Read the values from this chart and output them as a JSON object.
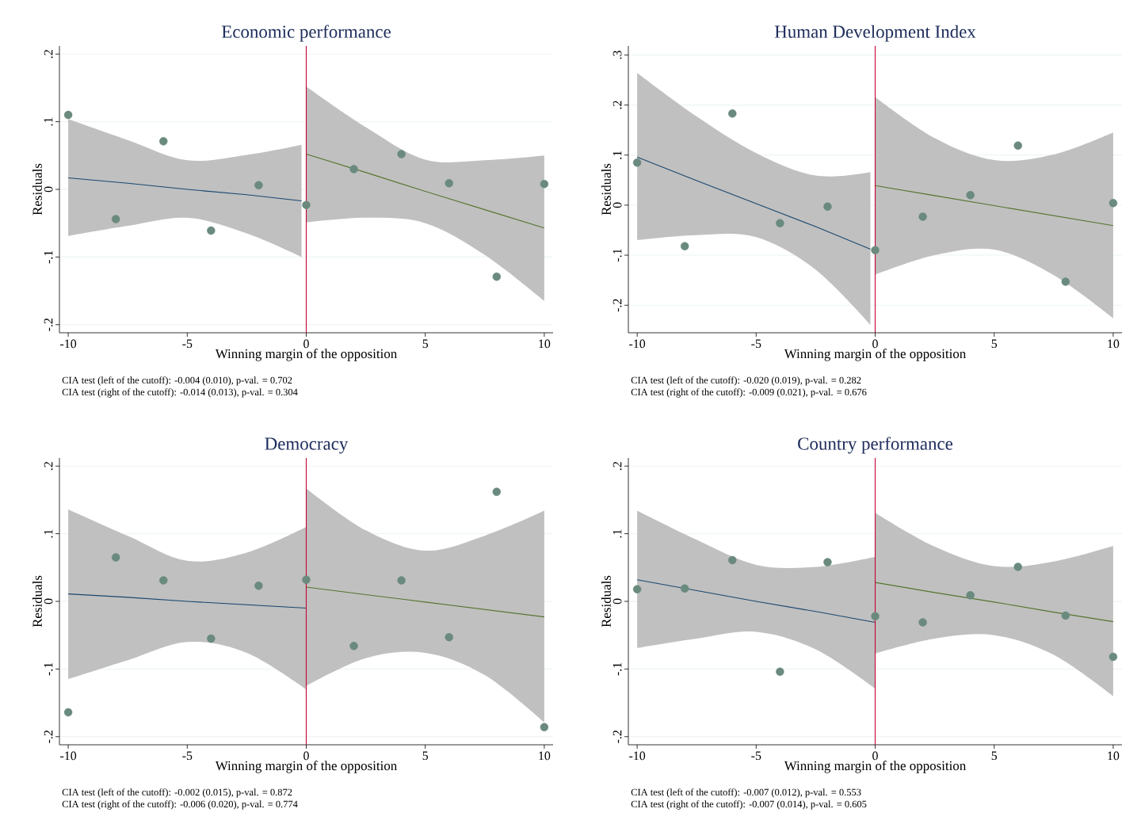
{
  "chart_data": [
    {
      "type": "scatter",
      "title": "Economic performance",
      "xlabel": "Winning margin of the opposition",
      "ylabel": "Residuals",
      "annotations": [
        "CIA test (left of the cutoff):  -0.004 (0.010), p-val. = 0.702",
        "CIA test (right of the cutoff): -0.014 (0.013), p-val. = 0.304"
      ],
      "xlim": [
        -10.37,
        10.37
      ],
      "ylim": [
        -0.212,
        0.212
      ],
      "xticks": [
        -10,
        -5,
        0,
        5,
        10
      ],
      "yticks": [
        {
          "value": -0.2,
          "label": "-.2"
        },
        {
          "value": -0.1,
          "label": "-.1"
        },
        0,
        {
          "value": 0.1,
          "label": ".1"
        },
        {
          "value": 0.2,
          "label": ".2"
        }
      ],
      "grid": "y",
      "marker": "circle",
      "ref_lines": [
        {
          "axis": "x",
          "value": 0,
          "color": "#c10534"
        }
      ],
      "series": [
        {
          "type": "scatter",
          "color": "#6a8a7e",
          "x": [
            -10,
            -8,
            -6,
            -4,
            -2,
            0,
            2,
            4,
            6,
            8,
            10
          ],
          "values": [
            0.11,
            -0.044,
            0.071,
            -0.061,
            0.006,
            -0.023,
            0.03,
            0.052,
            0.009,
            -0.129,
            0.008
          ]
        },
        {
          "type": "line",
          "marker": "none",
          "color": "#1a476f",
          "x": [
            -10,
            -7.5,
            -5,
            -2.5,
            -0.2
          ],
          "values": [
            0.017,
            0.009,
            0.0,
            -0.008,
            -0.017
          ],
          "lower": [
            -0.069,
            -0.054,
            -0.042,
            -0.065,
            -0.1
          ],
          "upper": [
            0.104,
            0.073,
            0.043,
            0.051,
            0.066
          ]
        },
        {
          "type": "line",
          "marker": "none",
          "color": "#55752f",
          "x": [
            0,
            2.5,
            5,
            7.5,
            10
          ],
          "values": [
            0.052,
            0.025,
            -0.003,
            -0.03,
            -0.057
          ],
          "lower": [
            -0.049,
            -0.042,
            -0.05,
            -0.097,
            -0.165
          ],
          "upper": [
            0.152,
            0.092,
            0.044,
            0.043,
            0.05
          ]
        }
      ]
    },
    {
      "type": "scatter",
      "title": "Human Development Index",
      "xlabel": "Winning margin of the opposition",
      "ylabel": "Residuals",
      "annotations": [
        "CIA test (left of the cutoff):  -0.020 (0.019), p-val. = 0.282",
        "CIA test (right of the cutoff): -0.009 (0.021), p-val. = 0.676"
      ],
      "xlim": [
        -10.37,
        10.37
      ],
      "ylim": [
        -0.255,
        0.318
      ],
      "xticks": [
        -10,
        -5,
        0,
        5,
        10
      ],
      "yticks": [
        {
          "value": -0.2,
          "label": "-.2"
        },
        {
          "value": -0.1,
          "label": "-.1"
        },
        0,
        {
          "value": 0.1,
          "label": ".1"
        },
        {
          "value": 0.2,
          "label": ".2"
        },
        {
          "value": 0.3,
          "label": ".3"
        }
      ],
      "grid": "y",
      "marker": "circle",
      "ref_lines": [
        {
          "axis": "x",
          "value": 0,
          "color": "#c10534"
        }
      ],
      "series": [
        {
          "type": "scatter",
          "color": "#6a8a7e",
          "x": [
            -10,
            -8,
            -6,
            -4,
            -2,
            0,
            2,
            4,
            6,
            8,
            10
          ],
          "values": [
            0.085,
            -0.082,
            0.183,
            -0.036,
            -0.003,
            -0.09,
            -0.023,
            0.02,
            0.119,
            -0.153,
            0.004
          ]
        },
        {
          "type": "line",
          "marker": "none",
          "color": "#1a476f",
          "x": [
            -10,
            -7.5,
            -5,
            -2.5,
            -0.2
          ],
          "values": [
            0.096,
            0.049,
            0.003,
            -0.043,
            -0.088
          ],
          "lower": [
            -0.07,
            -0.06,
            -0.064,
            -0.129,
            -0.239
          ],
          "upper": [
            0.264,
            0.177,
            0.104,
            0.059,
            0.066
          ]
        },
        {
          "type": "line",
          "marker": "none",
          "color": "#55752f",
          "x": [
            0,
            2.5,
            5,
            7.5,
            10
          ],
          "values": [
            0.039,
            0.019,
            -0.001,
            -0.021,
            -0.041
          ],
          "lower": [
            -0.139,
            -0.1,
            -0.089,
            -0.14,
            -0.226
          ],
          "upper": [
            0.216,
            0.134,
            0.09,
            0.101,
            0.145
          ]
        }
      ]
    },
    {
      "type": "scatter",
      "title": "Democracy",
      "xlabel": "Winning margin of the opposition",
      "ylabel": "Residuals",
      "annotations": [
        "CIA test (left of the cutoff):  -0.002 (0.015), p-val. = 0.872",
        "CIA test (right of the cutoff): -0.006 (0.020), p-val. = 0.774"
      ],
      "xlim": [
        -10.37,
        10.37
      ],
      "ylim": [
        -0.212,
        0.212
      ],
      "xticks": [
        -10,
        -5,
        0,
        5,
        10
      ],
      "yticks": [
        {
          "value": -0.2,
          "label": "-.2"
        },
        {
          "value": -0.1,
          "label": "-.1"
        },
        0,
        {
          "value": 0.1,
          "label": ".1"
        },
        {
          "value": 0.2,
          "label": ".2"
        }
      ],
      "grid": "y",
      "marker": "circle",
      "ref_lines": [
        {
          "axis": "x",
          "value": 0,
          "color": "#c10534"
        }
      ],
      "series": [
        {
          "type": "scatter",
          "color": "#6a8a7e",
          "x": [
            -10,
            -8,
            -6,
            -4,
            -2,
            0,
            2,
            4,
            6,
            8,
            10
          ],
          "values": [
            -0.164,
            0.065,
            0.031,
            -0.055,
            0.023,
            0.032,
            -0.066,
            0.031,
            -0.053,
            0.162,
            -0.186
          ]
        },
        {
          "type": "line",
          "marker": "none",
          "color": "#1a476f",
          "x": [
            -10,
            -7.5,
            -5,
            -2.5,
            0
          ],
          "values": [
            0.011,
            0.006,
            0.0,
            -0.005,
            -0.01
          ],
          "lower": [
            -0.115,
            -0.087,
            -0.06,
            -0.076,
            -0.13
          ],
          "upper": [
            0.136,
            0.097,
            0.06,
            0.072,
            0.11
          ]
        },
        {
          "type": "line",
          "marker": "none",
          "color": "#55752f",
          "x": [
            0,
            2.5,
            5,
            7.5,
            10
          ],
          "values": [
            0.021,
            0.01,
            -0.001,
            -0.012,
            -0.023
          ],
          "lower": [
            -0.125,
            -0.084,
            -0.076,
            -0.109,
            -0.179
          ],
          "upper": [
            0.167,
            0.105,
            0.075,
            0.097,
            0.134
          ]
        }
      ]
    },
    {
      "type": "scatter",
      "title": "Country performance",
      "xlabel": "Winning margin of the opposition",
      "ylabel": "Residuals",
      "annotations": [
        "CIA test (left of the cutoff):  -0.007 (0.012), p-val. = 0.553",
        "CIA test (right of the cutoff): -0.007 (0.014), p-val. = 0.605"
      ],
      "xlim": [
        -10.37,
        10.37
      ],
      "ylim": [
        -0.212,
        0.212
      ],
      "xticks": [
        -10,
        -5,
        0,
        5,
        10
      ],
      "yticks": [
        {
          "value": -0.2,
          "label": "-.2"
        },
        {
          "value": -0.1,
          "label": "-.1"
        },
        0,
        {
          "value": 0.1,
          "label": ".1"
        },
        {
          "value": 0.2,
          "label": ".2"
        }
      ],
      "grid": "y",
      "marker": "circle",
      "ref_lines": [
        {
          "axis": "x",
          "value": 0,
          "color": "#c10534"
        }
      ],
      "series": [
        {
          "type": "scatter",
          "color": "#6a8a7e",
          "x": [
            -10,
            -8,
            -6,
            -4,
            -2,
            0,
            2,
            4,
            6,
            8,
            10
          ],
          "values": [
            0.018,
            0.019,
            0.061,
            -0.104,
            0.058,
            -0.022,
            -0.031,
            0.009,
            0.051,
            -0.021,
            -0.082
          ]
        },
        {
          "type": "line",
          "marker": "none",
          "color": "#1a476f",
          "x": [
            -10,
            -7.5,
            -5,
            -2.5,
            0
          ],
          "values": [
            0.032,
            0.016,
            0.0,
            -0.015,
            -0.031
          ],
          "lower": [
            -0.069,
            -0.055,
            -0.045,
            -0.071,
            -0.129
          ],
          "upper": [
            0.134,
            0.091,
            0.054,
            0.051,
            0.066
          ]
        },
        {
          "type": "line",
          "marker": "none",
          "color": "#55752f",
          "x": [
            0,
            2.5,
            5,
            7.5,
            10
          ],
          "values": [
            0.028,
            0.013,
            -0.001,
            -0.016,
            -0.03
          ],
          "lower": [
            -0.077,
            -0.055,
            -0.05,
            -0.079,
            -0.14
          ],
          "upper": [
            0.131,
            0.081,
            0.052,
            0.059,
            0.082
          ]
        }
      ]
    }
  ]
}
